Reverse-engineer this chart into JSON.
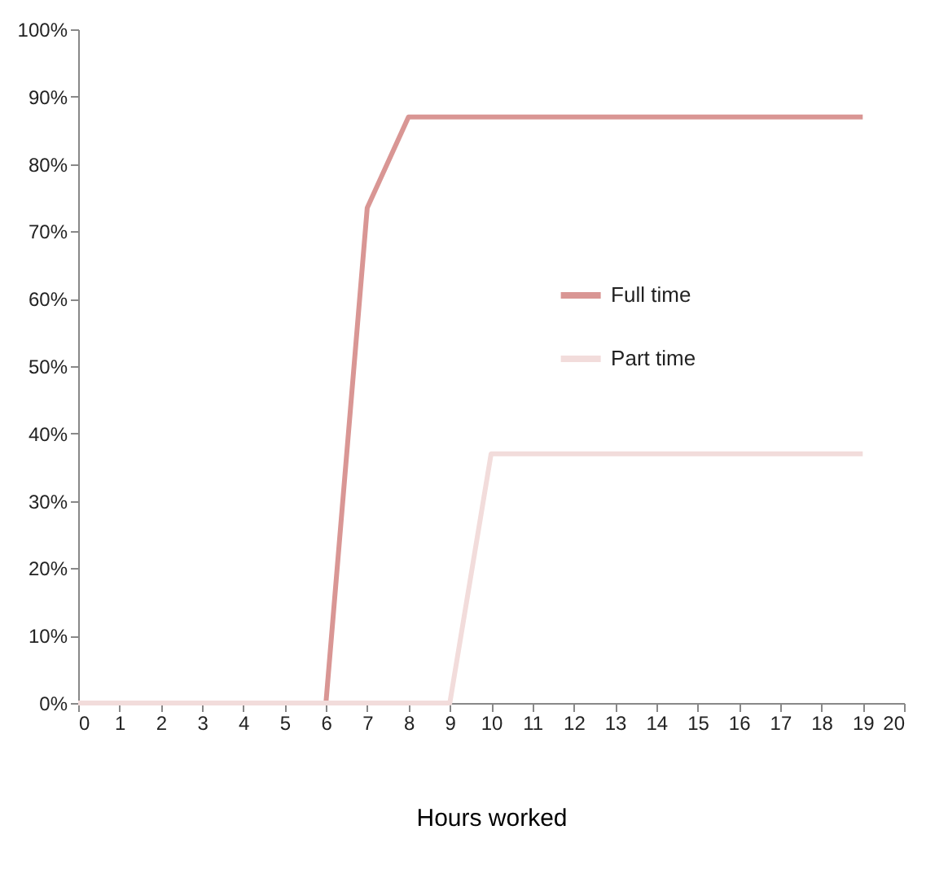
{
  "chart_data": {
    "type": "line",
    "xlabel": "Hours worked",
    "x": [
      0,
      1,
      2,
      3,
      4,
      5,
      6,
      7,
      8,
      9,
      10,
      11,
      12,
      13,
      14,
      15,
      16,
      17,
      18,
      19
    ],
    "series": [
      {
        "name": "Full time",
        "color": "#d99694",
        "values": [
          null,
          null,
          null,
          null,
          null,
          null,
          0,
          73.5,
          87,
          87,
          87,
          87,
          87,
          87,
          87,
          87,
          87,
          87,
          87,
          87
        ]
      },
      {
        "name": "Part time",
        "color": "#f2dcdb",
        "values": [
          0,
          0,
          0,
          0,
          0,
          0,
          0,
          0,
          0,
          0,
          37,
          37,
          37,
          37,
          37,
          37,
          37,
          37,
          37,
          37
        ]
      }
    ],
    "xlim": [
      0,
      20
    ],
    "xticks": [
      0,
      1,
      2,
      3,
      4,
      5,
      6,
      7,
      8,
      9,
      10,
      11,
      12,
      13,
      14,
      15,
      16,
      17,
      18,
      19,
      20
    ],
    "ylim": [
      0,
      100
    ],
    "yticks": [
      {
        "value": 0,
        "label": "0%"
      },
      {
        "value": 10,
        "label": "10%"
      },
      {
        "value": 20,
        "label": "20%"
      },
      {
        "value": 30,
        "label": "30%"
      },
      {
        "value": 40,
        "label": "40%"
      },
      {
        "value": 50,
        "label": "50%"
      },
      {
        "value": 60,
        "label": "60%"
      },
      {
        "value": 70,
        "label": "70%"
      },
      {
        "value": 80,
        "label": "80%"
      },
      {
        "value": 90,
        "label": "90%"
      },
      {
        "value": 100,
        "label": "100%"
      }
    ],
    "grid": false,
    "legend": "right",
    "marker": "none",
    "line_style": "solid"
  }
}
